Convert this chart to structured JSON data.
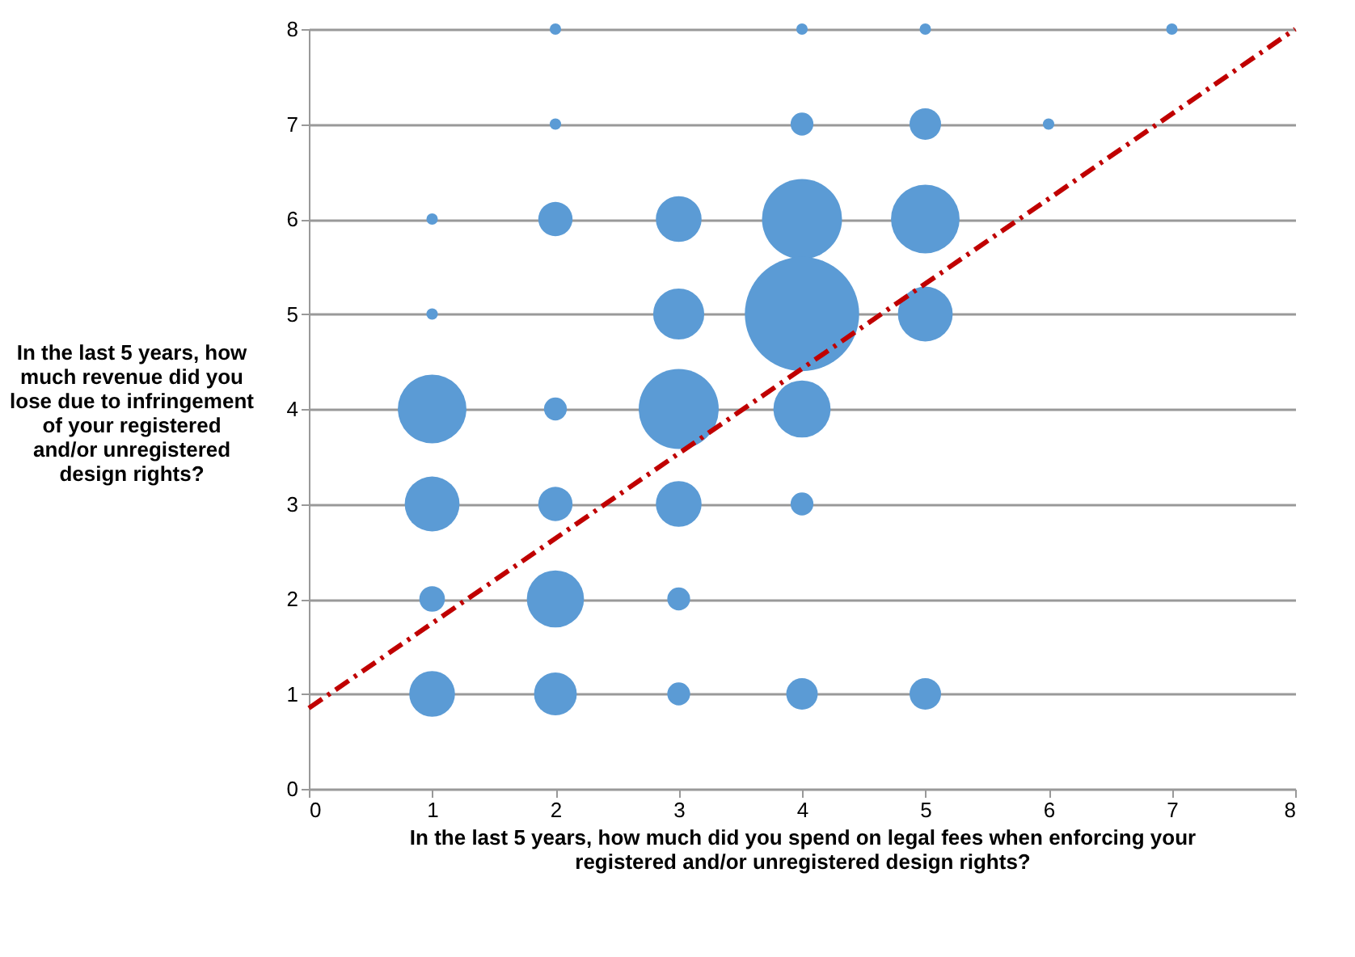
{
  "chart_data": {
    "type": "bubble",
    "xlabel": "In the last 5 years, how much did you spend on legal fees when enforcing your registered and/or unregistered design rights?",
    "ylabel": "In the last 5 years, how much revenue did you lose due to infringement of your registered and/or unregistered design rights?",
    "xlim": [
      0,
      8
    ],
    "xticks": [
      0,
      1,
      2,
      3,
      4,
      5,
      6,
      7,
      8
    ],
    "ylim": [
      0,
      8
    ],
    "yticks": [
      0,
      1,
      2,
      3,
      4,
      5,
      6,
      7,
      8
    ],
    "grid": "y",
    "series": [
      {
        "color": "#5b9bd5",
        "x": [
          2,
          4,
          5,
          7,
          2,
          4,
          5,
          6,
          1,
          2,
          3,
          4,
          5,
          1,
          3,
          4,
          5,
          1,
          2,
          3,
          4,
          1,
          2,
          3,
          4,
          1,
          2,
          3,
          1,
          2,
          3,
          4,
          5
        ],
        "values": [
          8,
          8,
          8,
          8,
          7,
          7,
          7,
          7,
          6,
          6,
          6,
          6,
          6,
          5,
          5,
          5,
          5,
          4,
          4,
          4,
          4,
          3,
          3,
          3,
          3,
          2,
          2,
          2,
          1,
          1,
          1,
          1,
          1
        ],
        "sizes": [
          0.01,
          0.01,
          0.01,
          0.01,
          0.01,
          0.04,
          0.076,
          0.01,
          0.01,
          0.09,
          0.16,
          0.49,
          0.36,
          0.01,
          0.2,
          1,
          0.23,
          0.36,
          0.04,
          0.49,
          0.25,
          0.23,
          0.09,
          0.16,
          0.04,
          0.05,
          0.25,
          0.04,
          0.16,
          0.14,
          0.04,
          0.076,
          0.076
        ]
      },
      {
        "type": "line",
        "color": "#c00000",
        "line_style": "dashed",
        "x": [
          0,
          8
        ],
        "values": [
          0.85,
          8
        ]
      }
    ]
  }
}
